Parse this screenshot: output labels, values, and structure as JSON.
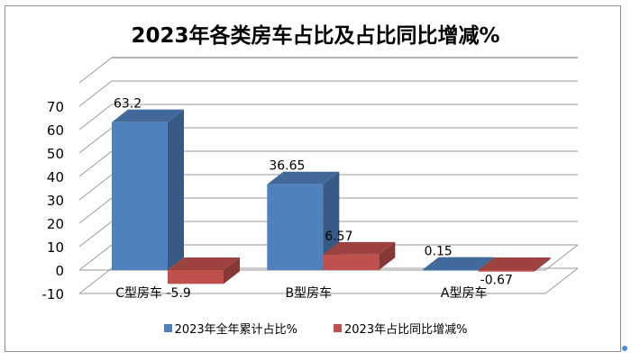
{
  "chart_data": {
    "type": "bar",
    "subtype": "3d-clustered-column",
    "title": "2023年各类房车占比及占比同比增减%",
    "categories": [
      "C型房车",
      "B型房车",
      "A型房车"
    ],
    "category_labels_displayed": [
      "C型房车 -5.9",
      "B型房车",
      "A型房车"
    ],
    "series": [
      {
        "name": "2023年全年累计占比%",
        "color": "#4f81bd",
        "values": [
          63.2,
          36.65,
          0.15
        ]
      },
      {
        "name": "2023年占比同比增减%",
        "color": "#c0504d",
        "values": [
          -5.9,
          6.57,
          -0.67
        ]
      }
    ],
    "data_labels": [
      [
        "63.2",
        "36.65",
        "0.15"
      ],
      [
        "-5.9",
        "6.57",
        "-0.67"
      ]
    ],
    "yticks": [
      "70",
      "60",
      "50",
      "40",
      "30",
      "20",
      "10",
      "0",
      "-10"
    ],
    "ylim": [
      -10,
      70
    ],
    "xlabel": "",
    "ylabel": "",
    "grid": true,
    "legend_position": "bottom"
  },
  "legend": {
    "items": [
      {
        "label": "2023年全年累计占比%",
        "color": "#4f81bd"
      },
      {
        "label": "2023年占比同比增减%",
        "color": "#c0504d"
      }
    ]
  }
}
